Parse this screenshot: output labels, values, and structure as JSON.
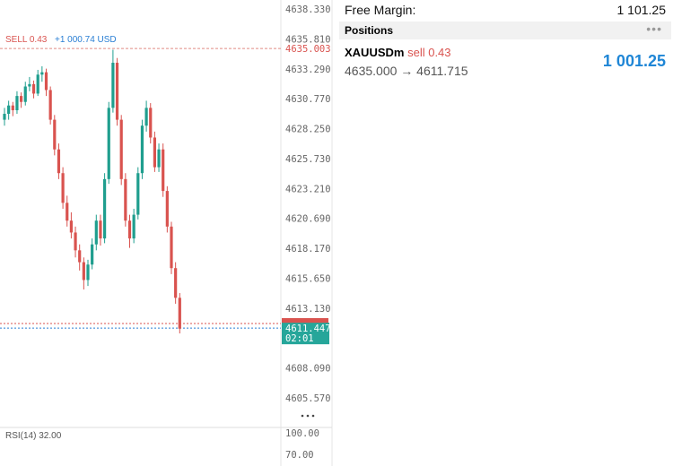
{
  "chart": {
    "type": "candlestick",
    "sell_label": "SELL 0.43",
    "sell_profit": "+1 000.74 USD",
    "price_ticks": [
      {
        "value": 4638.33,
        "label": "4638.330"
      },
      {
        "value": 4635.81,
        "label": "4635.810"
      },
      {
        "value": 4633.29,
        "label": "4633.290"
      },
      {
        "value": 4630.77,
        "label": "4630.770"
      },
      {
        "value": 4628.25,
        "label": "4628.250"
      },
      {
        "value": 4625.73,
        "label": "4625.730"
      },
      {
        "value": 4623.21,
        "label": "4623.210"
      },
      {
        "value": 4620.69,
        "label": "4620.690"
      },
      {
        "value": 4618.17,
        "label": "4618.170"
      },
      {
        "value": 4615.65,
        "label": "4615.650"
      },
      {
        "value": 4613.13,
        "label": "4613.130"
      },
      {
        "value": 4608.09,
        "label": "4608.090"
      },
      {
        "value": 4605.57,
        "label": "4605.570"
      }
    ],
    "open_price": {
      "value": 4635.003,
      "label": "4635.003"
    },
    "current_price": {
      "value": 4611.447,
      "label": "4611.447"
    },
    "countdown": "02:01",
    "candles": [
      [
        4629.0,
        4630.0,
        4628.5,
        4629.5
      ],
      [
        4629.5,
        4630.6,
        4629.0,
        4630.2
      ],
      [
        4630.2,
        4630.5,
        4629.3,
        4629.8
      ],
      [
        4629.8,
        4631.4,
        4629.5,
        4631.0
      ],
      [
        4631.0,
        4631.3,
        4630.0,
        4630.5
      ],
      [
        4630.5,
        4632.2,
        4630.2,
        4631.8
      ],
      [
        4631.8,
        4632.6,
        4631.4,
        4632.0
      ],
      [
        4632.0,
        4632.3,
        4630.8,
        4631.2
      ],
      [
        4631.2,
        4633.2,
        4631.0,
        4632.8
      ],
      [
        4632.8,
        4633.5,
        4632.2,
        4633.0
      ],
      [
        4633.0,
        4633.3,
        4631.0,
        4631.5
      ],
      [
        4631.5,
        4631.8,
        4628.6,
        4629.0
      ],
      [
        4629.0,
        4629.4,
        4626.0,
        4626.5
      ],
      [
        4626.5,
        4627.0,
        4624.0,
        4624.5
      ],
      [
        4624.5,
        4625.0,
        4621.5,
        4622.0
      ],
      [
        4622.0,
        4622.6,
        4620.0,
        4620.5
      ],
      [
        4620.5,
        4621.2,
        4619.0,
        4619.5
      ],
      [
        4619.5,
        4620.0,
        4617.4,
        4618.0
      ],
      [
        4618.0,
        4618.5,
        4616.3,
        4617.0
      ],
      [
        4617.0,
        4617.4,
        4614.7,
        4615.5
      ],
      [
        4615.5,
        4617.2,
        4615.0,
        4616.8
      ],
      [
        4616.8,
        4619.0,
        4616.4,
        4618.5
      ],
      [
        4618.5,
        4621.0,
        4618.0,
        4620.5
      ],
      [
        4620.5,
        4621.0,
        4618.4,
        4619.0
      ],
      [
        4619.0,
        4624.5,
        4618.6,
        4624.0
      ],
      [
        4624.0,
        4630.5,
        4623.6,
        4630.0
      ],
      [
        4630.0,
        4634.9,
        4629.6,
        4633.8
      ],
      [
        4633.8,
        4634.2,
        4628.5,
        4629.0
      ],
      [
        4629.0,
        4629.4,
        4623.5,
        4624.0
      ],
      [
        4624.0,
        4624.5,
        4620.0,
        4620.5
      ],
      [
        4620.5,
        4621.0,
        4618.2,
        4619.0
      ],
      [
        4619.0,
        4621.5,
        4618.6,
        4621.0
      ],
      [
        4621.0,
        4625.0,
        4620.6,
        4624.5
      ],
      [
        4624.5,
        4629.0,
        4624.0,
        4628.5
      ],
      [
        4628.5,
        4630.6,
        4628.0,
        4630.0
      ],
      [
        4630.0,
        4630.4,
        4627.0,
        4627.5
      ],
      [
        4627.5,
        4628.0,
        4624.6,
        4625.0
      ],
      [
        4625.0,
        4627.0,
        4624.6,
        4626.5
      ],
      [
        4626.5,
        4627.0,
        4622.5,
        4623.0
      ],
      [
        4623.0,
        4623.4,
        4619.5,
        4620.0
      ],
      [
        4620.0,
        4620.4,
        4616.0,
        4616.5
      ],
      [
        4616.5,
        4617.0,
        4613.5,
        4614.0
      ],
      [
        4614.0,
        4614.4,
        4611.0,
        4611.4
      ]
    ],
    "rsi_label": "RSI(14) 32.00",
    "rsi_ticks": [
      "100.00",
      "70.00"
    ]
  },
  "account": {
    "free_margin_label": "Free Margin:",
    "free_margin": "1 101.25"
  },
  "positions": {
    "title": "Positions",
    "items": [
      {
        "symbol": "XAUUSDm",
        "side": "sell 0.43",
        "prices": "4635.000 → 4611.715",
        "profit": "1 001.25"
      }
    ]
  }
}
